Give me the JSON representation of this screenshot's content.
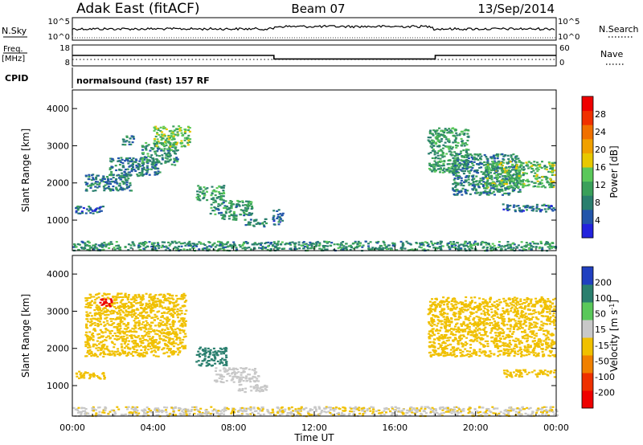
{
  "header": {
    "station": "Adak East (fitACF)",
    "beam": "Beam 07",
    "date": "13/Sep/2014"
  },
  "status_panels": {
    "nsky": {
      "label": "N.Sky",
      "ticks": [
        "10^5",
        "10^0"
      ],
      "right_label": "N.Search",
      "right_ticks": [
        "10^5",
        "10^0"
      ]
    },
    "freq": {
      "label_top": "Freq.",
      "label_unit": "[MHz]",
      "ticks": [
        "18",
        "8"
      ],
      "right_label": "Nave",
      "right_ticks": [
        "60",
        "0"
      ],
      "levels_mhz": [
        {
          "t0": 0,
          "t1": 10,
          "value": 13
        },
        {
          "t0": 10,
          "t1": 18,
          "value": 11
        },
        {
          "t0": 18,
          "t1": 24,
          "value": 13
        }
      ]
    },
    "cpid": {
      "label": "CPID",
      "text": "normalsound (fast) 157 RF"
    }
  },
  "x_axis": {
    "label": "Time UT",
    "ticks": [
      "00:00",
      "04:00",
      "08:00",
      "12:00",
      "16:00",
      "20:00",
      "00:00"
    ]
  },
  "y_axis": {
    "label": "Slant Range [km]",
    "ticks": [
      "1000",
      "2000",
      "3000",
      "4000"
    ]
  },
  "power_scale": {
    "label": "Power [dB]",
    "ticks": [
      "28",
      "24",
      "20",
      "16",
      "12",
      "8",
      "4"
    ],
    "colors": [
      "#2222dd",
      "#2255aa",
      "#2a7f6e",
      "#3aa05a",
      "#5ac85a",
      "#e8c800",
      "#f0a000",
      "#f07000",
      "#f03000",
      "#ee0000"
    ]
  },
  "velocity_scale": {
    "label": "Velocity [m s^-1]",
    "ticks": [
      "200",
      "100",
      "50",
      "15",
      "-15",
      "-50",
      "-100",
      "-200"
    ],
    "colors": [
      "#2040c0",
      "#2a7f6e",
      "#5ac85a",
      "#c8c8c8",
      "#f0c000",
      "#f08000",
      "#ee3000",
      "#ee0000"
    ]
  },
  "chart_data": [
    {
      "type": "heatmap",
      "title": "Power",
      "xlabel": "Time UT",
      "ylabel": "Slant Range [km]",
      "xlim_hours": [
        0,
        24
      ],
      "ylim_km": [
        180,
        4500
      ],
      "colorbar_label": "Power [dB]",
      "regions": [
        {
          "t0": 0.1,
          "t1": 1.6,
          "r0": 1200,
          "r1": 1400,
          "value": 6
        },
        {
          "t0": 0.6,
          "t1": 2.9,
          "r0": 1800,
          "r1": 2250,
          "value": 7
        },
        {
          "t0": 1.8,
          "t1": 4.3,
          "r0": 2200,
          "r1": 2700,
          "value": 7
        },
        {
          "t0": 2.4,
          "t1": 3.0,
          "r0": 3050,
          "r1": 3300,
          "value": 8
        },
        {
          "t0": 3.4,
          "t1": 5.2,
          "r0": 2500,
          "r1": 3100,
          "value": 9
        },
        {
          "t0": 4.0,
          "t1": 5.8,
          "r0": 3000,
          "r1": 3550,
          "value": 13
        },
        {
          "t0": 6.1,
          "t1": 7.5,
          "r0": 1550,
          "r1": 1950,
          "value": 10
        },
        {
          "t0": 6.8,
          "t1": 8.9,
          "r0": 1150,
          "r1": 1550,
          "value": 9
        },
        {
          "t0": 7.3,
          "t1": 8.1,
          "r0": 1000,
          "r1": 1150,
          "value": 8
        },
        {
          "t0": 8.5,
          "t1": 9.6,
          "r0": 850,
          "r1": 1050,
          "value": 8
        },
        {
          "t0": 9.9,
          "t1": 10.4,
          "r0": 900,
          "r1": 1300,
          "value": 6
        },
        {
          "t0": 17.6,
          "t1": 19.6,
          "r0": 2300,
          "r1": 3500,
          "value": 10
        },
        {
          "t0": 18.8,
          "t1": 22.2,
          "r0": 1700,
          "r1": 2800,
          "value": 8
        },
        {
          "t0": 20.4,
          "t1": 23.9,
          "r0": 1900,
          "r1": 2600,
          "value": 12
        },
        {
          "t0": 21.3,
          "t1": 23.9,
          "r0": 1250,
          "r1": 1450,
          "value": 6
        },
        {
          "t0": 0,
          "t1": 24,
          "r0": 200,
          "r1": 450,
          "value": 9
        }
      ]
    },
    {
      "type": "heatmap",
      "title": "Velocity",
      "xlabel": "Time UT",
      "ylabel": "Slant Range [km]",
      "xlim_hours": [
        0,
        24
      ],
      "ylim_km": [
        180,
        4500
      ],
      "colorbar_label": "Velocity [m s^-1]",
      "regions": [
        {
          "t0": 0.1,
          "t1": 1.6,
          "r0": 1200,
          "r1": 1400,
          "value": 0
        },
        {
          "t0": 0.6,
          "t1": 5.6,
          "r0": 1800,
          "r1": 3500,
          "value": 0
        },
        {
          "t0": 1.3,
          "t1": 1.9,
          "r0": 3150,
          "r1": 3350,
          "value": -150
        },
        {
          "t0": 6.1,
          "t1": 7.6,
          "r0": 1550,
          "r1": 2050,
          "value": 150
        },
        {
          "t0": 7.0,
          "t1": 9.2,
          "r0": 1100,
          "r1": 1500,
          "value": 30
        },
        {
          "t0": 8.2,
          "t1": 9.6,
          "r0": 850,
          "r1": 1050,
          "value": 30
        },
        {
          "t0": 17.6,
          "t1": 23.9,
          "r0": 1800,
          "r1": 3400,
          "value": 0
        },
        {
          "t0": 21.3,
          "t1": 23.9,
          "r0": 1250,
          "r1": 1450,
          "value": 0
        },
        {
          "t0": 0,
          "t1": 24,
          "r0": 200,
          "r1": 450,
          "value": 20
        }
      ]
    }
  ]
}
